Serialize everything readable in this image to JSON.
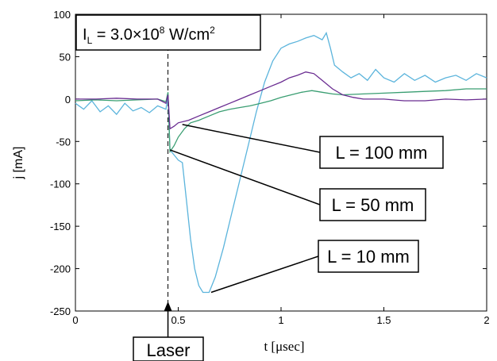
{
  "chart_data": {
    "type": "line",
    "xlabel": "t [μsec]",
    "ylabel": "j [mA]",
    "xlim": [
      0,
      2
    ],
    "ylim": [
      -250,
      100
    ],
    "xticks": [
      0,
      0.5,
      1,
      1.5,
      2
    ],
    "xtick_labels": [
      "0",
      "0.5",
      "1",
      "1.5",
      "2"
    ],
    "yticks": [
      100,
      50,
      0,
      -50,
      -100,
      -150,
      -200,
      -250
    ],
    "ytick_labels": [
      "100",
      "50",
      "0",
      "-50",
      "-100",
      "-150",
      "-200",
      "-250"
    ],
    "grid": false,
    "condition_label": {
      "main": "I",
      "sub": "L",
      "rest": " = 3.0×10",
      "exp": "8",
      "unit": " W/cm",
      "unit_exp": "2"
    },
    "laser_marker": {
      "x": 0.45,
      "label": "Laser"
    },
    "series": [
      {
        "name": "L = 10 mm",
        "color": "#5bb4dc",
        "x": [
          0,
          0.04,
          0.08,
          0.12,
          0.16,
          0.2,
          0.24,
          0.28,
          0.32,
          0.36,
          0.4,
          0.44,
          0.45,
          0.46,
          0.48,
          0.5,
          0.52,
          0.54,
          0.56,
          0.58,
          0.6,
          0.62,
          0.65,
          0.68,
          0.72,
          0.76,
          0.8,
          0.84,
          0.88,
          0.92,
          0.96,
          1.0,
          1.04,
          1.08,
          1.12,
          1.16,
          1.2,
          1.22,
          1.24,
          1.26,
          1.3,
          1.34,
          1.38,
          1.42,
          1.46,
          1.5,
          1.55,
          1.6,
          1.65,
          1.7,
          1.75,
          1.8,
          1.85,
          1.9,
          1.95,
          2.0
        ],
        "y": [
          -5,
          -12,
          -2,
          -15,
          -8,
          -18,
          -5,
          -14,
          -10,
          -16,
          -8,
          -12,
          5,
          -60,
          -66,
          -72,
          -75,
          -120,
          -165,
          -200,
          -220,
          -228,
          -228,
          -210,
          -175,
          -135,
          -95,
          -55,
          -15,
          20,
          45,
          60,
          65,
          68,
          72,
          75,
          70,
          78,
          60,
          40,
          32,
          25,
          30,
          22,
          35,
          25,
          20,
          30,
          22,
          28,
          20,
          25,
          28,
          22,
          30,
          25
        ]
      },
      {
        "name": "L = 50 mm",
        "color": "#3a9e72",
        "x": [
          0,
          0.1,
          0.2,
          0.3,
          0.4,
          0.44,
          0.45,
          0.46,
          0.48,
          0.5,
          0.53,
          0.56,
          0.6,
          0.65,
          0.7,
          0.75,
          0.8,
          0.85,
          0.9,
          0.95,
          1.0,
          1.05,
          1.1,
          1.15,
          1.2,
          1.25,
          1.3,
          1.4,
          1.5,
          1.6,
          1.7,
          1.8,
          1.9,
          2.0
        ],
        "y": [
          -2,
          -1,
          -2,
          -1,
          0,
          -3,
          8,
          -62,
          -55,
          -45,
          -35,
          -28,
          -25,
          -20,
          -15,
          -12,
          -10,
          -8,
          -5,
          -2,
          2,
          5,
          8,
          10,
          8,
          6,
          5,
          6,
          7,
          8,
          9,
          10,
          12,
          12
        ]
      },
      {
        "name": "L = 100 mm",
        "color": "#6a2c91",
        "x": [
          0,
          0.1,
          0.2,
          0.3,
          0.4,
          0.44,
          0.45,
          0.46,
          0.48,
          0.5,
          0.55,
          0.6,
          0.65,
          0.7,
          0.75,
          0.8,
          0.85,
          0.9,
          0.95,
          1.0,
          1.04,
          1.08,
          1.12,
          1.16,
          1.2,
          1.25,
          1.3,
          1.35,
          1.4,
          1.5,
          1.6,
          1.7,
          1.8,
          1.9,
          2.0
        ],
        "y": [
          0,
          0,
          1,
          0,
          0,
          -5,
          5,
          -35,
          -32,
          -28,
          -25,
          -20,
          -15,
          -10,
          -5,
          0,
          5,
          10,
          15,
          20,
          25,
          28,
          32,
          30,
          22,
          12,
          5,
          2,
          0,
          0,
          -2,
          -2,
          0,
          -1,
          0
        ]
      }
    ],
    "callouts": [
      {
        "label": "L = 100 mm",
        "series": "L = 100 mm",
        "anchor": [
          0.52,
          -30
        ]
      },
      {
        "label": "L = 50 mm",
        "series": "L = 50 mm",
        "anchor": [
          0.46,
          -60
        ]
      },
      {
        "label": "L = 10 mm",
        "series": "L = 10 mm",
        "anchor": [
          0.66,
          -228
        ]
      }
    ]
  }
}
